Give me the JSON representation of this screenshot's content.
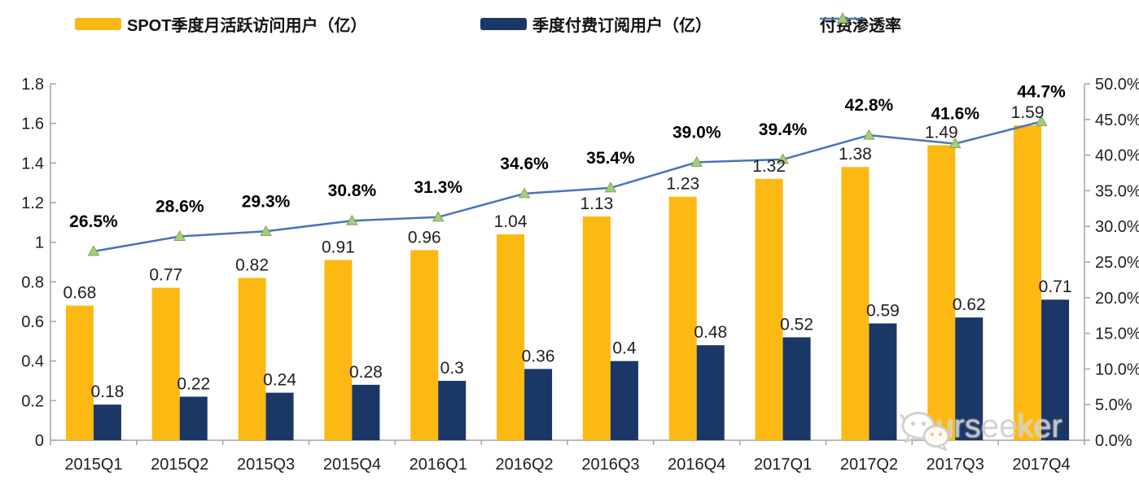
{
  "chart_data": {
    "type": "combo-bar-line",
    "title": "",
    "categories": [
      "2015Q1",
      "2015Q2",
      "2015Q3",
      "2015Q4",
      "2016Q1",
      "2016Q2",
      "2016Q3",
      "2016Q4",
      "2017Q1",
      "2017Q2",
      "2017Q3",
      "2017Q4"
    ],
    "series": [
      {
        "name": "SPOT季度月活跃访问用户（亿）",
        "type": "bar",
        "axis": "left",
        "color": "#FCB813",
        "values": [
          0.68,
          0.77,
          0.82,
          0.91,
          0.96,
          1.04,
          1.13,
          1.23,
          1.32,
          1.38,
          1.49,
          1.59
        ],
        "labels": [
          "0.68",
          "0.77",
          "0.82",
          "0.91",
          "0.96",
          "1.04",
          "1.13",
          "1.23",
          "1.32",
          "1.38",
          "1.49",
          "1.59"
        ]
      },
      {
        "name": "季度付费订阅用户（亿）",
        "type": "bar",
        "axis": "left",
        "color": "#1B3766",
        "values": [
          0.18,
          0.22,
          0.24,
          0.28,
          0.3,
          0.36,
          0.4,
          0.48,
          0.52,
          0.59,
          0.62,
          0.71
        ],
        "labels": [
          "0.18",
          "0.22",
          "0.24",
          "0.28",
          "0.3",
          "0.36",
          "0.4",
          "0.48",
          "0.52",
          "0.59",
          "0.62",
          "0.71"
        ]
      },
      {
        "name": "付费渗透率",
        "type": "line",
        "axis": "right",
        "color": "#4A73BE",
        "marker": {
          "shape": "triangle",
          "fill": "#A6CE7A",
          "stroke": "#7FA950"
        },
        "values": [
          26.5,
          28.6,
          29.3,
          30.8,
          31.3,
          34.6,
          35.4,
          39.0,
          39.4,
          42.8,
          41.6,
          44.7
        ],
        "labels": [
          "26.5%",
          "28.6%",
          "29.3%",
          "30.8%",
          "31.3%",
          "34.6%",
          "35.4%",
          "39.0%",
          "39.4%",
          "42.8%",
          "41.6%",
          "44.7%"
        ]
      }
    ],
    "left_axis": {
      "min": 0,
      "max": 1.8,
      "step": 0.2,
      "ticks": [
        "0",
        "0.2",
        "0.4",
        "0.6",
        "0.8",
        "1",
        "1.2",
        "1.4",
        "1.6",
        "1.8"
      ]
    },
    "right_axis": {
      "min": 0,
      "max": 50,
      "step": 5,
      "ticks": [
        "0.0%",
        "5.0%",
        "10.0%",
        "15.0%",
        "20.0%",
        "25.0%",
        "30.0%",
        "35.0%",
        "40.0%",
        "45.0%",
        "50.0%"
      ]
    },
    "grid": false,
    "legend_position": "top",
    "axis_color": "#A3A3A3",
    "tick_label_color": "#1F1F1F",
    "value_label_color": "#1F1F1F",
    "pct_label_color": "#000000"
  },
  "watermark": {
    "text": "Yourseeker",
    "icon": "wechat-icon",
    "color": "#cfcfcf"
  }
}
